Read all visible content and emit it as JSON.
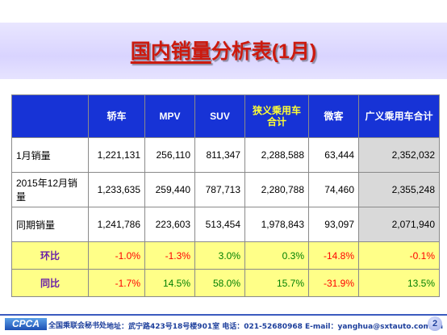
{
  "title": {
    "underlined": "国内销量",
    "rest": "分析表",
    "suffix": "(1月)"
  },
  "table": {
    "headers": [
      "",
      "轿车",
      "MPV",
      "SUV",
      "狭义乘用车\n合计",
      "微客",
      "广义乘用车合计"
    ],
    "rows": [
      {
        "label": "1月销量",
        "type": "data",
        "values": [
          "1,221,131",
          "256,110",
          "811,347",
          "2,288,588",
          "63,444",
          "2,352,032"
        ]
      },
      {
        "label": "2015年12月销量",
        "type": "data",
        "values": [
          "1,233,635",
          "259,440",
          "787,713",
          "2,280,788",
          "74,460",
          "2,355,248"
        ]
      },
      {
        "label": "同期销量",
        "type": "data",
        "values": [
          "1,241,786",
          "223,603",
          "513,454",
          "1,978,843",
          "93,097",
          "2,071,940"
        ]
      },
      {
        "label": "环比",
        "type": "pct",
        "values": [
          "-1.0%",
          "-1.3%",
          "3.0%",
          "0.3%",
          "-14.8%",
          "-0.1%"
        ]
      },
      {
        "label": "同比",
        "type": "pct",
        "values": [
          "-1.7%",
          "14.5%",
          "58.0%",
          "15.7%",
          "-31.9%",
          "13.5%"
        ]
      }
    ]
  },
  "colors": {
    "header_bg": "#1733d6",
    "header_highlight": "#ffff33",
    "pct_row_bg": "#ffff88",
    "negative": "#ff0000",
    "positive": "#008000",
    "title": "#cc1a0e"
  },
  "footer": {
    "logo": "CPCA",
    "org": "全国乘联会秘书处",
    "address": "地址：武宁路423号18号楼901室  电话：021-52680968  E-mail：yanghua@sxtauto.com.cn",
    "page": "2"
  }
}
